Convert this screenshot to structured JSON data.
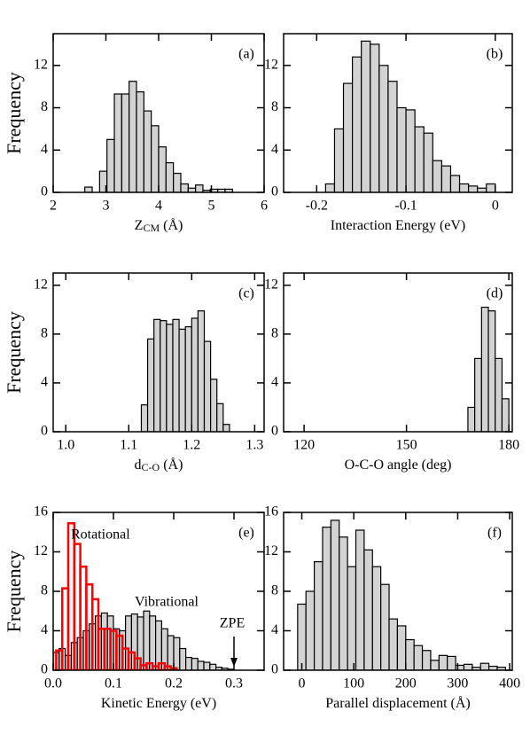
{
  "chart_data": [
    {
      "type": "histogram",
      "label": "(a)",
      "ylabel": "Frequency",
      "xlabel": [
        "Z",
        "CM",
        " (Å)"
      ],
      "xlim": [
        2,
        6
      ],
      "xticks": [
        2,
        3,
        4,
        5,
        6
      ],
      "ylim": [
        0,
        15
      ],
      "yticks": [
        0,
        4,
        8,
        12
      ],
      "color": "#d3d3d3",
      "bins": [
        2.6,
        2.74,
        2.88,
        3.02,
        3.16,
        3.3,
        3.44,
        3.58,
        3.72,
        3.86,
        4.0,
        4.14,
        4.28,
        4.42,
        4.56,
        4.7,
        4.84,
        4.98,
        5.12,
        5.26,
        5.4
      ],
      "values": [
        0.5,
        0,
        2,
        5,
        9.3,
        9.3,
        10.5,
        9.5,
        7.7,
        6.3,
        4.3,
        2.8,
        1.8,
        0.8,
        0.4,
        0.7,
        0.2,
        0.3,
        0.3,
        0.3
      ]
    },
    {
      "type": "histogram",
      "label": "(b)",
      "xlabel": [
        "Interaction Energy (eV)"
      ],
      "xlim": [
        -0.237,
        0.019
      ],
      "xticks": [
        -0.2,
        -0.1,
        0
      ],
      "ylim": [
        0,
        15
      ],
      "yticks": [
        0,
        4,
        8,
        12
      ],
      "color": "#d3d3d3",
      "bins": [
        -0.19,
        -0.18,
        -0.17,
        -0.16,
        -0.15,
        -0.14,
        -0.13,
        -0.12,
        -0.11,
        -0.1,
        -0.09,
        -0.08,
        -0.07,
        -0.06,
        -0.05,
        -0.04,
        -0.03,
        -0.02,
        -0.01,
        0
      ],
      "values": [
        0.8,
        6,
        10.3,
        12.8,
        14.3,
        14,
        12,
        10.5,
        8,
        7.8,
        6.2,
        5.6,
        3,
        2.5,
        1.6,
        0.8,
        0.6,
        0.4,
        0.8
      ]
    },
    {
      "type": "histogram",
      "label": "(c)",
      "ylabel": "Frequency",
      "xlabel": [
        "d",
        "C-O",
        " (Å)"
      ],
      "xlim": [
        0.98,
        1.315
      ],
      "xticks": [
        {
          "value": 1,
          "label": "1.0"
        },
        1.1,
        1.2,
        1.3
      ],
      "ylim": [
        0,
        13
      ],
      "yticks": [
        0,
        4,
        8,
        12
      ],
      "color": "#d3d3d3",
      "bins": [
        1.12,
        1.13,
        1.14,
        1.15,
        1.16,
        1.17,
        1.18,
        1.19,
        1.2,
        1.21,
        1.22,
        1.23,
        1.24,
        1.25,
        1.26
      ],
      "values": [
        2.2,
        7.6,
        9.2,
        9.1,
        8.8,
        9.2,
        8.4,
        8.6,
        9.3,
        9.9,
        7.4,
        4.3,
        2.3,
        0.6
      ]
    },
    {
      "type": "histogram",
      "label": "(d)",
      "xlabel": [
        "O-C-O angle (deg)"
      ],
      "xlim": [
        114,
        181
      ],
      "xticks": [
        120,
        150,
        180
      ],
      "ylim": [
        0,
        13
      ],
      "yticks": [
        0,
        4,
        8,
        12
      ],
      "color": "#d3d3d3",
      "bins": [
        168,
        170,
        172,
        174,
        176,
        178,
        180
      ],
      "values": [
        2,
        6,
        10.2,
        9.9,
        6,
        2.7
      ]
    },
    {
      "type": "histogram",
      "label": "(e)",
      "ylabel": "Frequency",
      "xlabel": [
        "Kinetic Energy (eV)"
      ],
      "xlim": [
        0,
        0.35
      ],
      "xticks": [
        {
          "value": 0,
          "label": "0.0"
        },
        0.1,
        0.2,
        0.3
      ],
      "ylim": [
        0,
        16
      ],
      "yticks": [
        0,
        4,
        8,
        12,
        16
      ],
      "annotations": [
        {
          "text": "ZPE",
          "x": 0.3
        }
      ],
      "series": [
        {
          "name": "Vibrational",
          "color": "#d3d3d3",
          "bins": [
            0,
            0.01,
            0.02,
            0.03,
            0.04,
            0.05,
            0.06,
            0.07,
            0.08,
            0.09,
            0.1,
            0.11,
            0.12,
            0.13,
            0.14,
            0.15,
            0.16,
            0.17,
            0.18,
            0.19,
            0.2,
            0.21,
            0.22,
            0.23,
            0.24,
            0.25,
            0.26,
            0.27,
            0.28,
            0.29,
            0.3
          ],
          "values": [
            1.8,
            2.2,
            1.5,
            2.8,
            3.3,
            4,
            4.7,
            5.5,
            5.8,
            5.5,
            4.2,
            4,
            5.5,
            5.7,
            5.4,
            6,
            5.5,
            5,
            4.2,
            3.5,
            3.3,
            2.2,
            1.3,
            1.2,
            0.9,
            0.8,
            0.6,
            0.3,
            0.2,
            0.1
          ]
        },
        {
          "name": "Rotational",
          "color": "#ff0000",
          "bins": [
            0.005,
            0.015,
            0.025,
            0.035,
            0.045,
            0.055,
            0.065,
            0.075,
            0.085,
            0.095,
            0.105,
            0.115,
            0.125,
            0.135,
            0.145,
            0.155,
            0.165,
            0.175,
            0.185,
            0.195,
            0.205
          ],
          "values": [
            2,
            8.3,
            14.9,
            12.8,
            10.5,
            8.7,
            7.2,
            4.2,
            4.2,
            4,
            3.5,
            2.2,
            1.8,
            1.2,
            0.5,
            0.7,
            0.4,
            0.7,
            0.4,
            0.2
          ]
        }
      ]
    },
    {
      "type": "histogram",
      "label": "(f)",
      "xlabel": [
        "Parallel displacement (Å)"
      ],
      "xlim": [
        -35,
        405
      ],
      "xticks": [
        0,
        100,
        200,
        300,
        400
      ],
      "ylim": [
        0,
        16
      ],
      "yticks": [
        0,
        4,
        8,
        12,
        16
      ],
      "color": "#d3d3d3",
      "bins": [
        -8,
        8,
        24,
        40,
        56,
        72,
        88,
        104,
        120,
        136,
        152,
        168,
        184,
        200,
        216,
        232,
        248,
        264,
        280,
        296,
        312,
        328,
        344,
        360,
        376,
        392
      ],
      "values": [
        6.7,
        8,
        11,
        14.5,
        15.2,
        13.5,
        10.5,
        14.2,
        12.2,
        10.5,
        8.7,
        5.2,
        4.5,
        3.1,
        2.5,
        2,
        1,
        1.5,
        1.4,
        0.5,
        0.6,
        0.3,
        0.7,
        0.4,
        0.3
      ]
    }
  ]
}
